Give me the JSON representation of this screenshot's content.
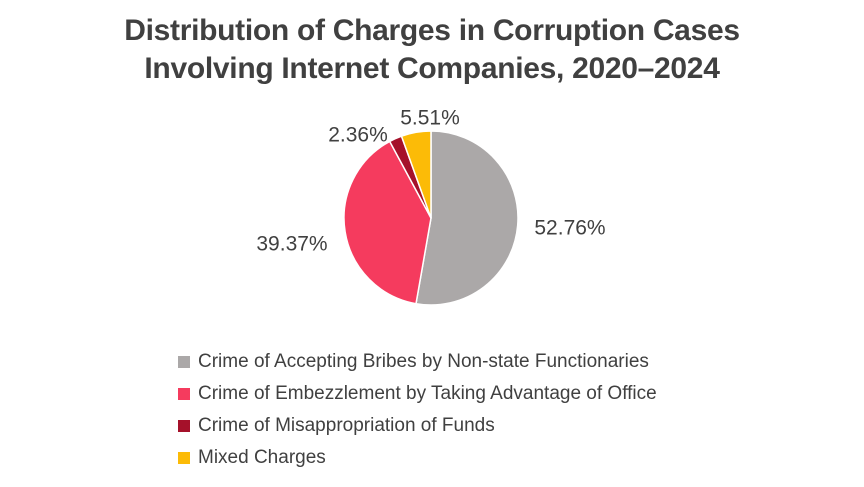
{
  "chart_data": {
    "type": "pie",
    "title": [
      "Distribution of Charges in Corruption Cases",
      "Involving Internet Companies, 2020–2024"
    ],
    "start_angle_deg": 0,
    "direction": "clockwise",
    "slices": [
      {
        "label": "Crime of Accepting Bribes by Non-state Functionaries",
        "value": 52.76,
        "value_label": "52.76%",
        "color": "#ABA8A8"
      },
      {
        "label": "Crime of Embezzlement by Taking Advantage of Office",
        "value": 39.37,
        "value_label": "39.37%",
        "color": "#F53B5E"
      },
      {
        "label": "Crime of Misappropriation of Funds",
        "value": 2.36,
        "value_label": "2.36%",
        "color": "#A5112A"
      },
      {
        "label": "Mixed Charges",
        "value": 5.51,
        "value_label": "5.51%",
        "color": "#FCBB07"
      }
    ],
    "legend_position": "bottom-left"
  }
}
